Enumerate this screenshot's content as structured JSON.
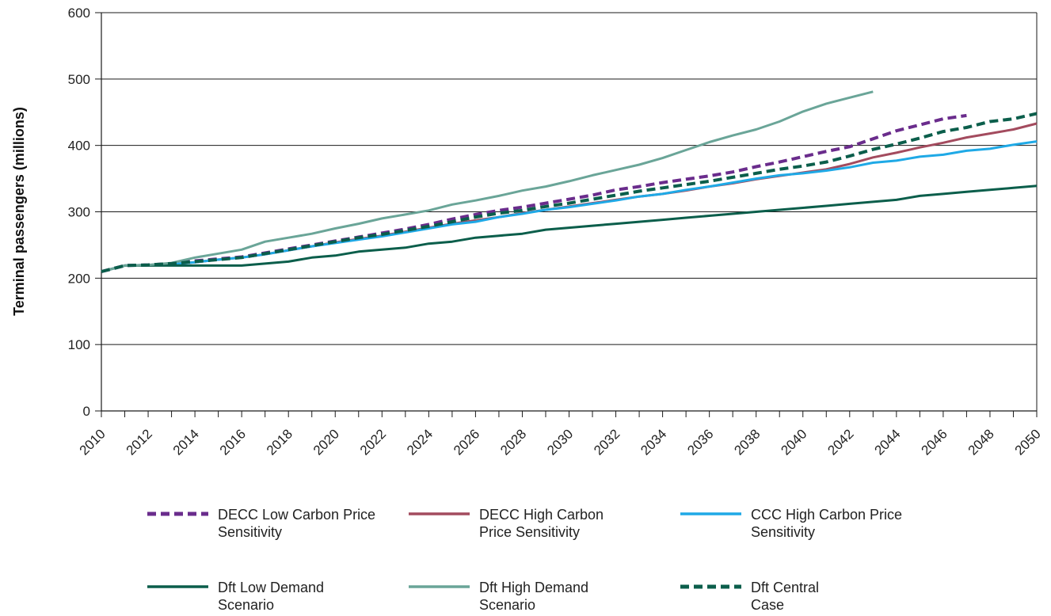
{
  "chart_data": {
    "type": "line",
    "ylabel": "Terminal passengers (millions)",
    "xlabel": "",
    "title": "",
    "xlim": [
      2010,
      2050
    ],
    "ylim": [
      0,
      600
    ],
    "yticks": [
      0,
      100,
      200,
      300,
      400,
      500,
      600
    ],
    "xticks": [
      2010,
      2012,
      2014,
      2016,
      2018,
      2020,
      2022,
      2024,
      2026,
      2028,
      2030,
      2032,
      2034,
      2036,
      2038,
      2040,
      2042,
      2044,
      2046,
      2048,
      2050
    ],
    "grid": "horizontal",
    "legend_position": "bottom",
    "series": [
      {
        "name": "DECC Low Carbon Price Sensitivity",
        "color": "#6a2c8c",
        "dash": "dashed",
        "x": [
          2010,
          2011,
          2012,
          2013,
          2014,
          2015,
          2016,
          2017,
          2018,
          2019,
          2020,
          2021,
          2022,
          2023,
          2024,
          2025,
          2026,
          2027,
          2028,
          2029,
          2030,
          2031,
          2032,
          2033,
          2034,
          2035,
          2036,
          2037,
          2038,
          2039,
          2040,
          2041,
          2042,
          2043,
          2044,
          2045,
          2046,
          2047
        ],
        "y": [
          210,
          219,
          220,
          222,
          226,
          229,
          232,
          238,
          244,
          250,
          256,
          262,
          268,
          274,
          281,
          289,
          296,
          302,
          307,
          313,
          319,
          325,
          333,
          338,
          344,
          349,
          354,
          360,
          368,
          375,
          383,
          391,
          398,
          410,
          422,
          431,
          440,
          445
        ]
      },
      {
        "name": "DECC High Carbon Price Sensitivity",
        "color": "#a34b5e",
        "dash": "solid",
        "x": [
          2010,
          2011,
          2012,
          2013,
          2014,
          2015,
          2016,
          2017,
          2018,
          2019,
          2020,
          2021,
          2022,
          2023,
          2024,
          2025,
          2026,
          2027,
          2028,
          2029,
          2030,
          2031,
          2032,
          2033,
          2034,
          2035,
          2036,
          2037,
          2038,
          2039,
          2040,
          2041,
          2042,
          2043,
          2044,
          2045,
          2046,
          2047,
          2048,
          2049,
          2050
        ],
        "y": [
          210,
          219,
          220,
          221,
          224,
          228,
          231,
          236,
          242,
          248,
          254,
          259,
          264,
          270,
          276,
          282,
          287,
          292,
          298,
          303,
          308,
          313,
          318,
          323,
          327,
          332,
          338,
          343,
          349,
          354,
          359,
          364,
          372,
          382,
          389,
          397,
          404,
          412,
          418,
          424,
          433
        ]
      },
      {
        "name": "CCC High Carbon Price Sensitivity",
        "color": "#1fa9e6",
        "dash": "solid",
        "x": [
          2010,
          2011,
          2012,
          2013,
          2014,
          2015,
          2016,
          2017,
          2018,
          2019,
          2020,
          2021,
          2022,
          2023,
          2024,
          2025,
          2026,
          2027,
          2028,
          2029,
          2030,
          2031,
          2032,
          2033,
          2034,
          2035,
          2036,
          2037,
          2038,
          2039,
          2040,
          2041,
          2042,
          2043,
          2044,
          2045,
          2046,
          2047,
          2048,
          2049,
          2050
        ],
        "y": [
          210,
          219,
          220,
          221,
          224,
          228,
          231,
          236,
          242,
          248,
          253,
          258,
          263,
          269,
          275,
          281,
          285,
          292,
          297,
          303,
          307,
          312,
          317,
          323,
          327,
          333,
          338,
          344,
          350,
          355,
          358,
          362,
          367,
          374,
          377,
          383,
          386,
          392,
          395,
          401,
          406
        ]
      },
      {
        "name": "Dft Low Demand Scenario",
        "color": "#0b5e4b",
        "dash": "solid",
        "x": [
          2010,
          2011,
          2012,
          2013,
          2014,
          2015,
          2016,
          2017,
          2018,
          2019,
          2020,
          2021,
          2022,
          2023,
          2024,
          2025,
          2026,
          2027,
          2028,
          2029,
          2030,
          2031,
          2032,
          2033,
          2034,
          2035,
          2036,
          2037,
          2038,
          2039,
          2040,
          2041,
          2042,
          2043,
          2044,
          2045,
          2046,
          2047,
          2048,
          2049,
          2050
        ],
        "y": [
          210,
          219,
          219,
          219,
          219,
          219,
          219,
          222,
          225,
          231,
          234,
          240,
          243,
          246,
          252,
          255,
          261,
          264,
          267,
          273,
          276,
          279,
          282,
          285,
          288,
          291,
          294,
          297,
          300,
          303,
          306,
          309,
          312,
          315,
          318,
          324,
          327,
          330,
          333,
          336,
          339
        ]
      },
      {
        "name": "Dft High Demand Scenario",
        "color": "#6aa598",
        "dash": "solid",
        "x": [
          2010,
          2011,
          2012,
          2013,
          2014,
          2015,
          2016,
          2017,
          2018,
          2019,
          2020,
          2021,
          2022,
          2023,
          2024,
          2025,
          2026,
          2027,
          2028,
          2029,
          2030,
          2031,
          2032,
          2033,
          2034,
          2035,
          2036,
          2037,
          2038,
          2039,
          2040,
          2041,
          2042,
          2043
        ],
        "y": [
          210,
          219,
          220,
          223,
          231,
          237,
          243,
          255,
          261,
          267,
          275,
          282,
          290,
          296,
          302,
          311,
          317,
          324,
          332,
          338,
          346,
          355,
          363,
          371,
          381,
          393,
          405,
          415,
          424,
          436,
          451,
          463,
          472,
          481
        ]
      },
      {
        "name": "Dft Central Case",
        "color": "#0b5e4b",
        "dash": "dashed",
        "x": [
          2010,
          2011,
          2012,
          2013,
          2014,
          2015,
          2016,
          2017,
          2018,
          2019,
          2020,
          2021,
          2022,
          2023,
          2024,
          2025,
          2026,
          2027,
          2028,
          2029,
          2030,
          2031,
          2032,
          2033,
          2034,
          2035,
          2036,
          2037,
          2038,
          2039,
          2040,
          2041,
          2042,
          2043,
          2044,
          2045,
          2046,
          2047,
          2048,
          2049,
          2050
        ],
        "y": [
          210,
          219,
          220,
          222,
          225,
          228,
          231,
          237,
          243,
          249,
          255,
          261,
          266,
          272,
          278,
          285,
          292,
          298,
          302,
          308,
          313,
          319,
          325,
          331,
          336,
          341,
          346,
          352,
          358,
          364,
          369,
          375,
          384,
          394,
          402,
          411,
          421,
          427,
          436,
          440,
          448
        ]
      }
    ]
  }
}
